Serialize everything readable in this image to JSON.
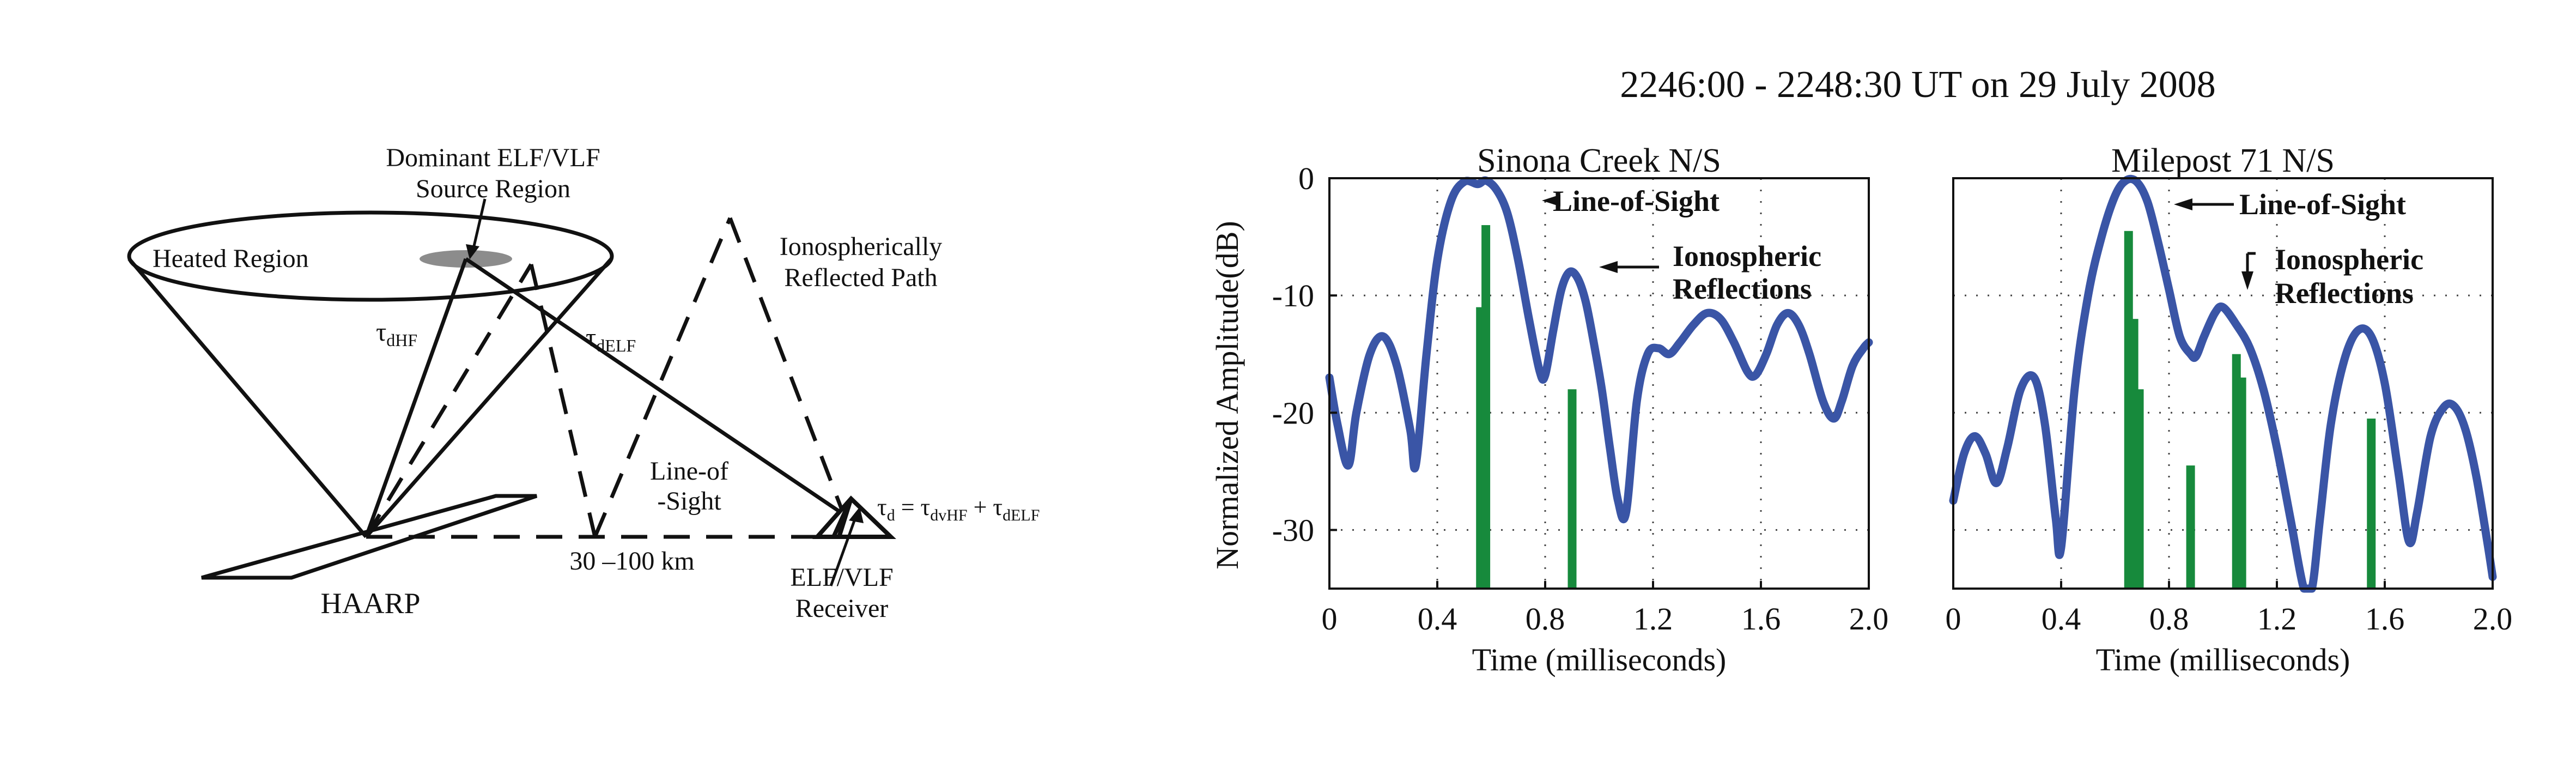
{
  "diagram": {
    "source_label_1": "Dominant ELF/VLF",
    "source_label_2": "Source Region",
    "heated_region": "Heated Region",
    "tau_dhf": {
      "base": "τ",
      "sub": "dHF"
    },
    "tau_delf": {
      "base": "τ",
      "sub": "dELF"
    },
    "iono_label_1": "Ionospherically",
    "iono_label_2": "Reflected Path",
    "los_label_1": "Line-of",
    "los_label_2": "-Sight",
    "distance": "30 –100 km",
    "haarp": "HAARP",
    "receiver_1": "ELF/VLF",
    "receiver_2": "Receiver",
    "equation": {
      "lhs": "τ",
      "lhs_sub": "d",
      "eq": " = ",
      "t1": "τ",
      "t1_sub": "dvHF",
      "plus": " + ",
      "t2": "τ",
      "t2_sub": "dELF"
    }
  },
  "figure_title": "2246:00 - 2248:30 UT on 29 July 2008",
  "colors": {
    "line": "#3a55a6",
    "bar": "#178a3c",
    "ink": "#111111",
    "grid": "#444444"
  },
  "chart_data": [
    {
      "type": "line",
      "title": "Sinona Creek N/S",
      "xlabel": "Time (milliseconds)",
      "ylabel": "Normalized Amplitude(dB)",
      "xlim": [
        0,
        2.0
      ],
      "ylim": [
        -35,
        0
      ],
      "xticks": [
        "0",
        "0.4",
        "0.8",
        "1.2",
        "1.6",
        "2.0"
      ],
      "xtick_values": [
        0,
        0.4,
        0.8,
        1.2,
        1.6,
        2.0
      ],
      "yticks": [
        "0",
        "-10",
        "-20",
        "-30"
      ],
      "ytick_values": [
        0,
        -10,
        -20,
        -30
      ],
      "grid": true,
      "series": [
        {
          "values_x": [
            0,
            0.03,
            0.07,
            0.1,
            0.15,
            0.2,
            0.25,
            0.3,
            0.32,
            0.36,
            0.4,
            0.45,
            0.5,
            0.55,
            0.58,
            0.62,
            0.66,
            0.7,
            0.74,
            0.78,
            0.8,
            0.83,
            0.86,
            0.89,
            0.92,
            0.95,
            0.98,
            1.01,
            1.04,
            1.07,
            1.1,
            1.14,
            1.18,
            1.22,
            1.26,
            1.3,
            1.35,
            1.4,
            1.45,
            1.5,
            1.55,
            1.58,
            1.62,
            1.66,
            1.7,
            1.74,
            1.78,
            1.83,
            1.87,
            1.9,
            1.94,
            1.98,
            2.0
          ],
          "values_y": [
            -17,
            -21,
            -24.5,
            -20,
            -15,
            -13.5,
            -16,
            -21.5,
            -24.5,
            -15,
            -7,
            -2,
            -0.3,
            -0.5,
            -0.2,
            -1,
            -3,
            -7,
            -12,
            -16.5,
            -16.8,
            -13,
            -9.5,
            -8,
            -8.5,
            -10.5,
            -14,
            -18,
            -23,
            -27.5,
            -28.5,
            -19,
            -15,
            -14.5,
            -15,
            -14,
            -12.5,
            -11.5,
            -12,
            -14,
            -16.5,
            -16.8,
            -15,
            -12.5,
            -11.5,
            -12.5,
            -15,
            -19,
            -20.5,
            -19,
            -16,
            -14.5,
            -14
          ]
        }
      ],
      "bars": [
        {
          "x": 0.56,
          "y": -11
        },
        {
          "x": 0.58,
          "y": -4
        },
        {
          "x": 0.9,
          "y": -18
        }
      ],
      "annotations": [
        "Line-of-Sight",
        "Ionospheric",
        "Reflections"
      ]
    },
    {
      "type": "line",
      "title": "Milepost 71 N/S",
      "xlabel": "Time (milliseconds)",
      "xlim": [
        0,
        2.0
      ],
      "ylim": [
        -35,
        0
      ],
      "xticks": [
        "0",
        "0.4",
        "0.8",
        "1.2",
        "1.6",
        "2.0"
      ],
      "xtick_values": [
        0,
        0.4,
        0.8,
        1.2,
        1.6,
        2.0
      ],
      "yticks": [],
      "grid": true,
      "series": [
        {
          "values_x": [
            0,
            0.04,
            0.08,
            0.12,
            0.16,
            0.2,
            0.25,
            0.3,
            0.34,
            0.38,
            0.4,
            0.45,
            0.5,
            0.55,
            0.6,
            0.64,
            0.68,
            0.72,
            0.76,
            0.8,
            0.84,
            0.88,
            0.9,
            0.93,
            0.97,
            1.0,
            1.05,
            1.1,
            1.15,
            1.2,
            1.25,
            1.3,
            1.33,
            1.36,
            1.4,
            1.45,
            1.5,
            1.55,
            1.6,
            1.65,
            1.69,
            1.72,
            1.77,
            1.82,
            1.86,
            1.9,
            1.94,
            1.98,
            2.0
          ],
          "values_y": [
            -27.5,
            -23.5,
            -22,
            -23.5,
            -26,
            -23,
            -18,
            -17,
            -21,
            -29,
            -31.5,
            -18,
            -10,
            -5,
            -1.5,
            -0.2,
            -0.3,
            -2,
            -5.5,
            -9.5,
            -13.5,
            -15,
            -15.2,
            -13.5,
            -11.5,
            -11,
            -12.5,
            -14.5,
            -18,
            -23,
            -29,
            -35,
            -35,
            -29,
            -21,
            -15.5,
            -13,
            -13.5,
            -17.5,
            -25,
            -31,
            -28.5,
            -22,
            -19.5,
            -19.5,
            -21.5,
            -25.5,
            -31,
            -34
          ]
        }
      ],
      "bars": [
        {
          "x": 0.65,
          "y": -4.5
        },
        {
          "x": 0.67,
          "y": -12
        },
        {
          "x": 0.69,
          "y": -18
        },
        {
          "x": 0.88,
          "y": -24.5
        },
        {
          "x": 1.05,
          "y": -15
        },
        {
          "x": 1.07,
          "y": -17
        },
        {
          "x": 1.55,
          "y": -20.5
        }
      ],
      "annotations": [
        "Line-of-Sight",
        "Ionospheric",
        "Reflections"
      ]
    }
  ]
}
